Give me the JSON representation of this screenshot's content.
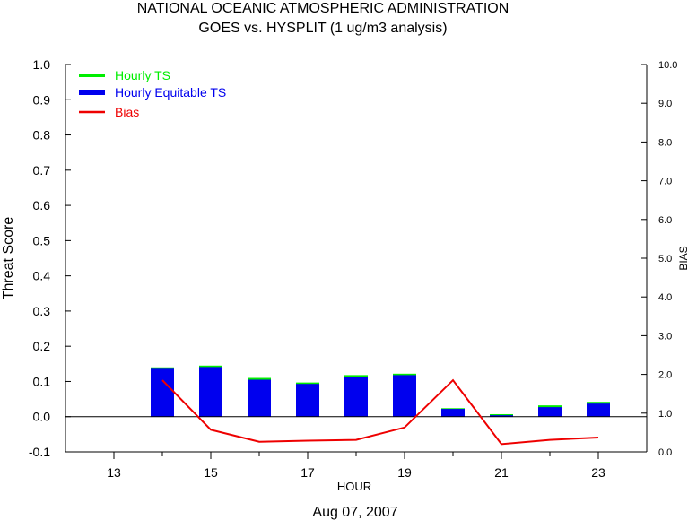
{
  "chart_data": {
    "type": "bar",
    "title": "NATIONAL OCEANIC ATMOSPHERIC ADMINISTRATION",
    "subtitle": "GOES vs. HYSPLIT  (1 ug/m3 analysis)",
    "xlabel": "HOUR",
    "ylabel": "Threat Score",
    "y2label": "BIAS",
    "footer": "Aug 07, 2007",
    "xlim": [
      12,
      24
    ],
    "ylim": [
      -0.1,
      1.0
    ],
    "y2lim": [
      0.0,
      10.0
    ],
    "x_ticks": [
      13,
      15,
      17,
      19,
      21,
      23
    ],
    "y_ticks": [
      "-0.1",
      "0.0",
      "0.1",
      "0.2",
      "0.3",
      "0.4",
      "0.5",
      "0.6",
      "0.7",
      "0.8",
      "0.9",
      "1.0"
    ],
    "y2_ticks": [
      "0.0",
      "1.0",
      "2.0",
      "3.0",
      "4.0",
      "5.0",
      "6.0",
      "7.0",
      "8.0",
      "9.0",
      "10.0"
    ],
    "legend_position": "top-left",
    "hours": [
      14,
      15,
      16,
      17,
      18,
      19,
      20,
      21,
      22,
      23
    ],
    "series": [
      {
        "name": "Hourly TS",
        "type": "bar",
        "color": "#00ee00",
        "values": [
          0.14,
          0.145,
          0.11,
          0.097,
          0.118,
          0.122,
          0.024,
          0.007,
          0.032,
          0.042
        ]
      },
      {
        "name": "Hourly Equitable TS",
        "type": "bar",
        "color": "#0000ee",
        "values": [
          0.136,
          0.141,
          0.105,
          0.093,
          0.113,
          0.118,
          0.022,
          0.004,
          0.027,
          0.037
        ]
      },
      {
        "name": "Bias",
        "type": "line",
        "axis": "right",
        "color": "#ee0000",
        "values": [
          1.85,
          0.57,
          0.26,
          0.29,
          0.31,
          0.63,
          1.85,
          0.2,
          0.31,
          0.37
        ]
      }
    ]
  }
}
